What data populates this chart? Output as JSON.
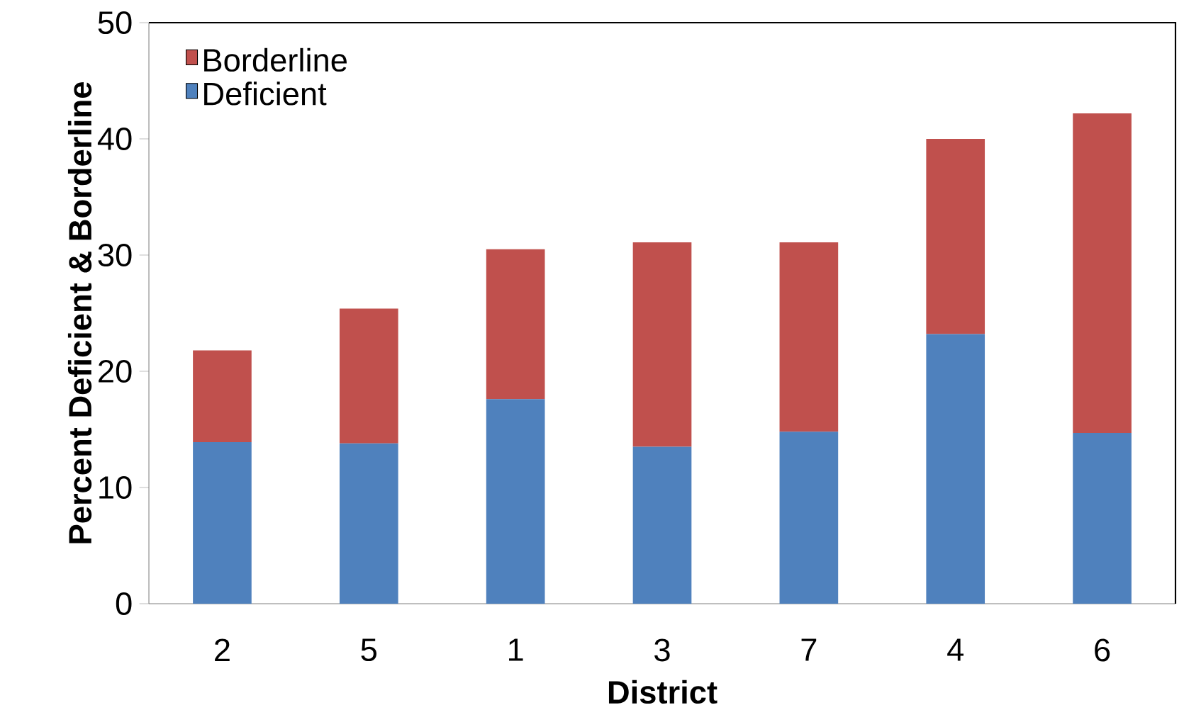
{
  "chart_data": {
    "type": "bar",
    "stacked": true,
    "xlabel": "District",
    "ylabel": "Percent Deficient & Borderline",
    "categories": [
      "2",
      "5",
      "1",
      "3",
      "7",
      "4",
      "6"
    ],
    "series": [
      {
        "name": "Deficient",
        "color": "#4f81bd",
        "values": [
          13.9,
          13.8,
          17.6,
          13.5,
          14.8,
          23.2,
          14.7
        ]
      },
      {
        "name": "Borderline",
        "color": "#c0504d",
        "values": [
          7.9,
          11.6,
          12.9,
          17.6,
          16.3,
          16.8,
          27.5
        ]
      }
    ],
    "ylim": [
      0,
      50
    ],
    "yticks": [
      0,
      10,
      20,
      30,
      40,
      50
    ],
    "legend": "top left"
  }
}
